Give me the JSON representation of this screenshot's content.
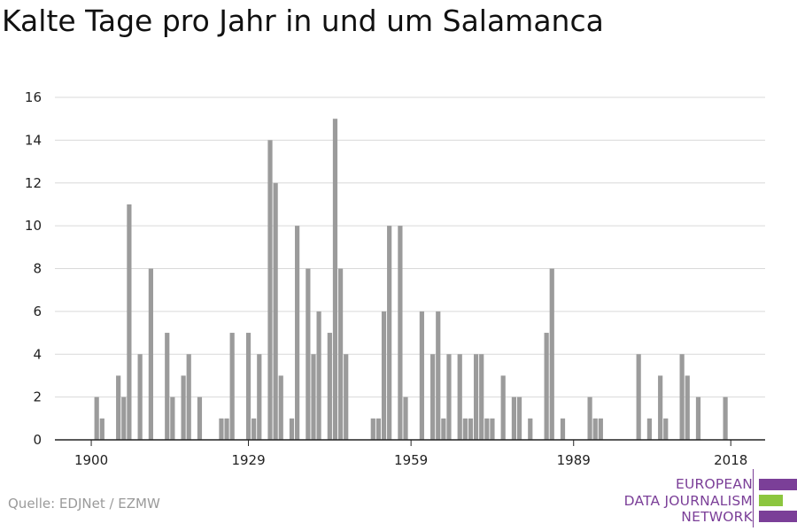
{
  "title": "Kalte Tage pro Jahr in und um Salamanca",
  "source": "Quelle: EDJNet / EZMW",
  "logo": {
    "lines": [
      "EUROPEAN",
      "DATA JOURNALISM",
      "NETWORK"
    ],
    "colors": {
      "purple": "#7b3f98",
      "green": "#8cc63f"
    }
  },
  "chart_data": {
    "type": "bar",
    "title": "Kalte Tage pro Jahr in und um Salamanca",
    "xlabel": "",
    "ylabel": "",
    "ylim": [
      0,
      16
    ],
    "yticks": [
      0,
      2,
      4,
      6,
      8,
      10,
      12,
      14,
      16
    ],
    "xticks": [
      "1900",
      "1929",
      "1959",
      "1989",
      "2018"
    ],
    "grid": true,
    "bar_color": "#9b9b9b",
    "years": [
      1900,
      1901,
      1902,
      1903,
      1904,
      1905,
      1906,
      1907,
      1908,
      1909,
      1910,
      1911,
      1912,
      1913,
      1914,
      1915,
      1916,
      1917,
      1918,
      1919,
      1920,
      1921,
      1922,
      1923,
      1924,
      1925,
      1926,
      1927,
      1928,
      1929,
      1930,
      1931,
      1932,
      1933,
      1934,
      1935,
      1936,
      1937,
      1938,
      1939,
      1940,
      1941,
      1942,
      1943,
      1944,
      1945,
      1946,
      1947,
      1948,
      1949,
      1950,
      1951,
      1952,
      1953,
      1954,
      1955,
      1956,
      1957,
      1958,
      1959,
      1960,
      1961,
      1962,
      1963,
      1964,
      1965,
      1966,
      1967,
      1968,
      1969,
      1970,
      1971,
      1972,
      1973,
      1974,
      1975,
      1976,
      1977,
      1978,
      1979,
      1980,
      1981,
      1982,
      1983,
      1984,
      1985,
      1986,
      1987,
      1988,
      1989,
      1990,
      1991,
      1992,
      1993,
      1994,
      1995,
      1996,
      1997,
      1998,
      1999,
      2000,
      2001,
      2002,
      2003,
      2004,
      2005,
      2006,
      2007,
      2008,
      2009,
      2010,
      2011,
      2012,
      2013,
      2014,
      2015,
      2016,
      2017,
      2018
    ],
    "values": [
      0,
      2,
      1,
      0,
      0,
      3,
      2,
      11,
      0,
      4,
      0,
      8,
      0,
      0,
      5,
      2,
      0,
      3,
      4,
      0,
      2,
      0,
      0,
      0,
      1,
      1,
      5,
      0,
      0,
      5,
      1,
      4,
      0,
      14,
      12,
      3,
      0,
      1,
      10,
      0,
      8,
      4,
      6,
      0,
      5,
      15,
      8,
      4,
      0,
      0,
      0,
      0,
      1,
      1,
      6,
      10,
      0,
      10,
      2,
      0,
      0,
      6,
      0,
      4,
      6,
      1,
      4,
      0,
      4,
      1,
      1,
      4,
      4,
      1,
      1,
      0,
      3,
      0,
      2,
      2,
      0,
      1,
      0,
      0,
      5,
      8,
      0,
      1,
      0,
      0,
      0,
      0,
      2,
      1,
      1,
      0,
      0,
      0,
      0,
      0,
      0,
      4,
      0,
      1,
      0,
      3,
      1,
      0,
      0,
      4,
      3,
      0,
      2,
      0,
      0,
      0,
      0,
      2,
      0
    ]
  }
}
